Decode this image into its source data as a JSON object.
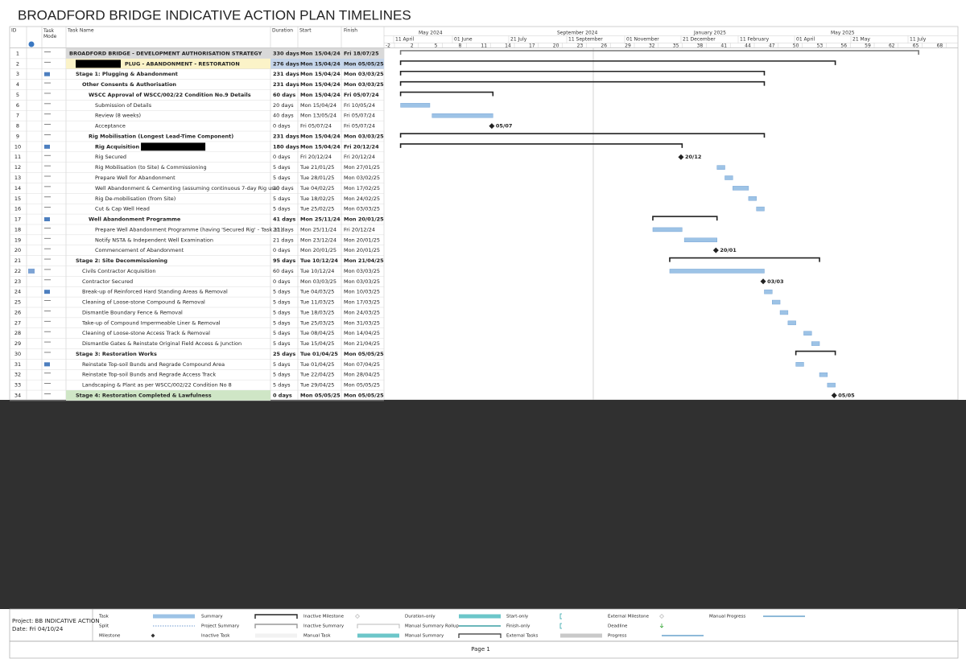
{
  "header": {
    "title": "BROADFORD BRIDGE INDICATIVE ACTION PLAN TIMELINES"
  },
  "table": {
    "columns": [
      "ID",
      "Task Mode",
      "Task Name",
      "Duration",
      "Start",
      "Finish"
    ],
    "rows": [
      {
        "id": 1,
        "name": "BROADFORD BRIDGE - DEVELOPMENT AUTHORISATION STRATEGY",
        "duration": "330 days",
        "start": "Mon 15/04/24",
        "finish": "Fri 18/07/25"
      },
      {
        "id": 2,
        "name": "PLUG - ABANDONMENT - RESTORATION",
        "duration": "276 days",
        "start": "Mon 15/04/24",
        "finish": "Mon 05/05/25"
      },
      {
        "id": 3,
        "name": "Stage 1: Plugging & Abandonment",
        "duration": "231 days",
        "start": "Mon 15/04/24",
        "finish": "Mon 03/03/25"
      },
      {
        "id": 4,
        "name": "Other Consents & Authorisation",
        "duration": "231 days",
        "start": "Mon 15/04/24",
        "finish": "Mon 03/03/25"
      },
      {
        "id": 5,
        "name": "WSCC Approval of WSCC/002/22 Condition No.9 Details",
        "duration": "60 days",
        "start": "Mon 15/04/24",
        "finish": "Fri 05/07/24"
      },
      {
        "id": 6,
        "name": "Submission of Details",
        "duration": "20 days",
        "start": "Mon 15/04/24",
        "finish": "Fri 10/05/24"
      },
      {
        "id": 7,
        "name": "Review (8 weeks)",
        "duration": "40 days",
        "start": "Mon 13/05/24",
        "finish": "Fri 05/07/24"
      },
      {
        "id": 8,
        "name": "Acceptance",
        "duration": "0 days",
        "start": "Fri 05/07/24",
        "finish": "Fri 05/07/24",
        "milestone_label": "05/07"
      },
      {
        "id": 9,
        "name": "Rig Mobilisation (Longest Lead-Time Component)",
        "duration": "231 days",
        "start": "Mon 15/04/24",
        "finish": "Mon 03/03/25"
      },
      {
        "id": 10,
        "name": "Rig Acquisition",
        "duration": "180 days",
        "start": "Mon 15/04/24",
        "finish": "Fri 20/12/24"
      },
      {
        "id": 11,
        "name": "Rig Secured",
        "duration": "0 days",
        "start": "Fri 20/12/24",
        "finish": "Fri 20/12/24",
        "milestone_label": "20/12"
      },
      {
        "id": 12,
        "name": "Rig Mobilisation (to Site) & Commissioning",
        "duration": "5 days",
        "start": "Tue 21/01/25",
        "finish": "Mon 27/01/25"
      },
      {
        "id": 13,
        "name": "Prepare Well for Abandonment",
        "duration": "5 days",
        "start": "Tue 28/01/25",
        "finish": "Mon 03/02/25"
      },
      {
        "id": 14,
        "name": "Well Abandonment & Cementing (assuming continuous 7-day Rig use)",
        "duration": "10 days",
        "start": "Tue 04/02/25",
        "finish": "Mon 17/02/25"
      },
      {
        "id": 15,
        "name": "Rig De-mobilisation (from Site)",
        "duration": "5 days",
        "start": "Tue 18/02/25",
        "finish": "Mon 24/02/25"
      },
      {
        "id": 16,
        "name": "Cut & Cap Well Head",
        "duration": "5 days",
        "start": "Tue 25/02/25",
        "finish": "Mon 03/03/25"
      },
      {
        "id": 17,
        "name": "Well Abandonment Programme",
        "duration": "41 days",
        "start": "Mon 25/11/24",
        "finish": "Mon 20/01/25"
      },
      {
        "id": 18,
        "name": "Prepare Well Abandonment Programme (having 'Secured Rig' - Task 11)",
        "duration": "20 days",
        "start": "Mon 25/11/24",
        "finish": "Fri 20/12/24"
      },
      {
        "id": 19,
        "name": "Notify NSTA & Independent Well Examination",
        "duration": "21 days",
        "start": "Mon 23/12/24",
        "finish": "Mon 20/01/25"
      },
      {
        "id": 20,
        "name": "Commencement of Abandonment",
        "duration": "0 days",
        "start": "Mon 20/01/25",
        "finish": "Mon 20/01/25",
        "milestone_label": "20/01"
      },
      {
        "id": 21,
        "name": "Stage 2: Site Decommissioning",
        "duration": "95 days",
        "start": "Tue 10/12/24",
        "finish": "Mon 21/04/25"
      },
      {
        "id": 22,
        "name": "Civils Contractor Acquisition",
        "duration": "60 days",
        "start": "Tue 10/12/24",
        "finish": "Mon 03/03/25"
      },
      {
        "id": 23,
        "name": "Contractor Secured",
        "duration": "0 days",
        "start": "Mon 03/03/25",
        "finish": "Mon 03/03/25",
        "milestone_label": "03/03"
      },
      {
        "id": 24,
        "name": "Break-up of Reinforced Hard Standing Areas & Removal",
        "duration": "5 days",
        "start": "Tue 04/03/25",
        "finish": "Mon 10/03/25"
      },
      {
        "id": 25,
        "name": "Cleaning of Loose-stone Compound & Removal",
        "duration": "5 days",
        "start": "Tue 11/03/25",
        "finish": "Mon 17/03/25"
      },
      {
        "id": 26,
        "name": "Dismantle Boundary Fence & Removal",
        "duration": "5 days",
        "start": "Tue 18/03/25",
        "finish": "Mon 24/03/25"
      },
      {
        "id": 27,
        "name": "Take-up of Compound Impermeable Liner & Removal",
        "duration": "5 days",
        "start": "Tue 25/03/25",
        "finish": "Mon 31/03/25"
      },
      {
        "id": 28,
        "name": "Cleaning of Loose-stone Access Track & Removal",
        "duration": "5 days",
        "start": "Tue 08/04/25",
        "finish": "Mon 14/04/25"
      },
      {
        "id": 29,
        "name": "Dismantle Gates & Reinstate Original Field Access & Junction",
        "duration": "5 days",
        "start": "Tue 15/04/25",
        "finish": "Mon 21/04/25"
      },
      {
        "id": 30,
        "name": "Stage 3: Restoration Works",
        "duration": "25 days",
        "start": "Tue 01/04/25",
        "finish": "Mon 05/05/25"
      },
      {
        "id": 31,
        "name": "Reinstate Top-soil Bunds and Regrade Compound Area",
        "duration": "5 days",
        "start": "Tue 01/04/25",
        "finish": "Mon 07/04/25"
      },
      {
        "id": 32,
        "name": "Reinstate Top-soil Bunds and Regrade Access Track",
        "duration": "5 days",
        "start": "Tue 22/04/25",
        "finish": "Mon 28/04/25"
      },
      {
        "id": 33,
        "name": "Landscaping & Plant as per WSCC/002/22 Condition No 8",
        "duration": "5 days",
        "start": "Tue 29/04/25",
        "finish": "Mon 05/05/25"
      },
      {
        "id": 34,
        "name": "Stage 4: Restoration Completed & Lawfulness",
        "duration": "0 days",
        "start": "Mon 05/05/25",
        "finish": "Mon 05/05/25",
        "milestone_label": "05/05"
      }
    ]
  },
  "timescale": {
    "top": [
      "May 2024",
      "September 2024",
      "January 2025",
      "May 2025"
    ],
    "middle": [
      "11 April",
      "01 June",
      "21 July",
      "11 September",
      "01 November",
      "21 December",
      "11 February",
      "01 April",
      "21 May",
      "11 July"
    ],
    "weeks": [
      -2,
      2,
      5,
      8,
      11,
      14,
      17,
      20,
      23,
      26,
      29,
      32,
      35,
      38,
      41,
      44,
      47,
      50,
      53,
      56,
      59,
      62,
      65,
      68
    ]
  },
  "footer": {
    "project": "Project: BB INDICATIVE ACTION",
    "date": "Date: Fri 04/10/24",
    "legend": [
      "Task",
      "Split",
      "Milestone",
      "Summary",
      "Project Summary",
      "Inactive Task",
      "Inactive Milestone",
      "Inactive Summary",
      "Manual Task",
      "Duration-only",
      "Manual Summary Rollup",
      "Manual Summary",
      "Start-only",
      "Finish-only",
      "External Tasks",
      "External Milestone",
      "Deadline",
      "Progress",
      "Manual Progress"
    ],
    "page": "Page 1"
  }
}
